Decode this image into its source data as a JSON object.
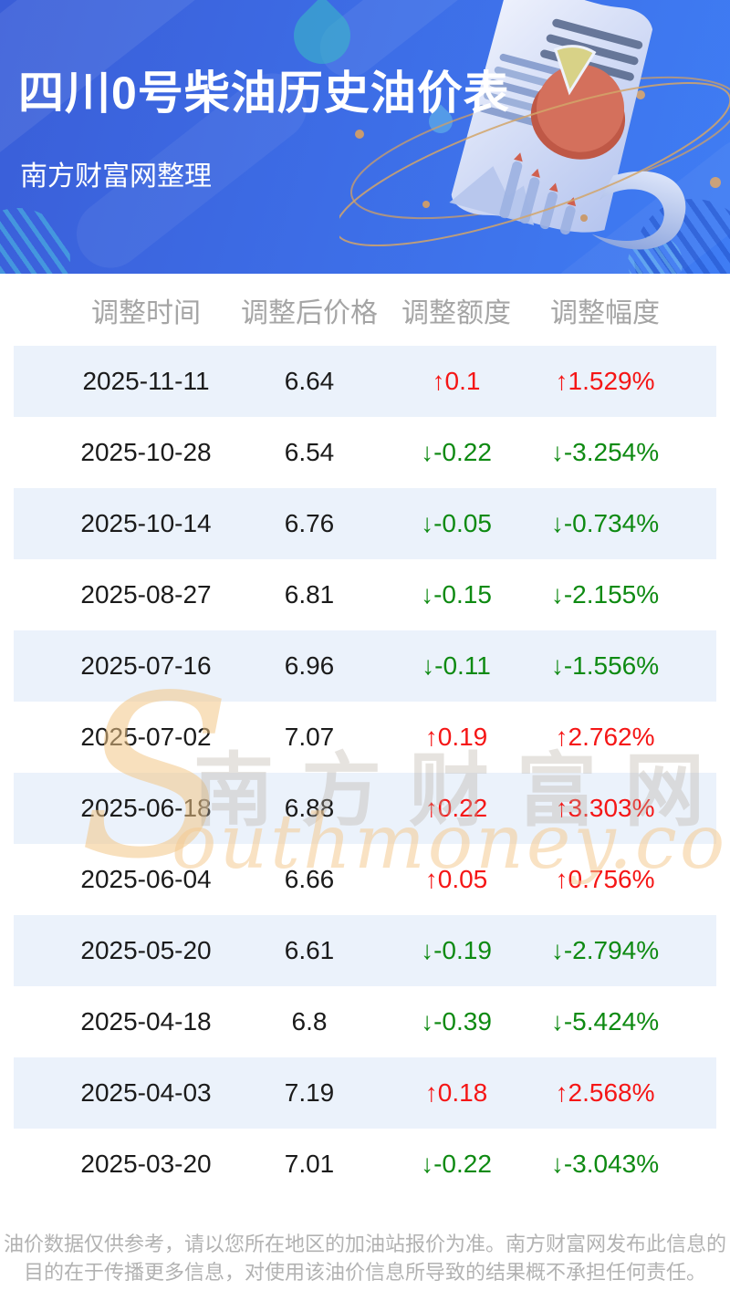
{
  "header": {
    "title": "四川0号柴油历史油价表",
    "subtitle": "南方财富网整理"
  },
  "table": {
    "columns": [
      "调整时间",
      "调整后价格",
      "调整额度",
      "调整幅度"
    ],
    "rows": [
      {
        "date": "2025-11-11",
        "price": "6.64",
        "change": "↑0.1",
        "rate": "↑1.529%",
        "direction": "up"
      },
      {
        "date": "2025-10-28",
        "price": "6.54",
        "change": "↓-0.22",
        "rate": "↓-3.254%",
        "direction": "down"
      },
      {
        "date": "2025-10-14",
        "price": "6.76",
        "change": "↓-0.05",
        "rate": "↓-0.734%",
        "direction": "down"
      },
      {
        "date": "2025-08-27",
        "price": "6.81",
        "change": "↓-0.15",
        "rate": "↓-2.155%",
        "direction": "down"
      },
      {
        "date": "2025-07-16",
        "price": "6.96",
        "change": "↓-0.11",
        "rate": "↓-1.556%",
        "direction": "down"
      },
      {
        "date": "2025-07-02",
        "price": "7.07",
        "change": "↑0.19",
        "rate": "↑2.762%",
        "direction": "up"
      },
      {
        "date": "2025-06-18",
        "price": "6.88",
        "change": "↑0.22",
        "rate": "↑3.303%",
        "direction": "up"
      },
      {
        "date": "2025-06-04",
        "price": "6.66",
        "change": "↑0.05",
        "rate": "↑0.756%",
        "direction": "up"
      },
      {
        "date": "2025-05-20",
        "price": "6.61",
        "change": "↓-0.19",
        "rate": "↓-2.794%",
        "direction": "down"
      },
      {
        "date": "2025-04-18",
        "price": "6.8",
        "change": "↓-0.39",
        "rate": "↓-5.424%",
        "direction": "down"
      },
      {
        "date": "2025-04-03",
        "price": "7.19",
        "change": "↑0.18",
        "rate": "↑2.568%",
        "direction": "up"
      },
      {
        "date": "2025-03-20",
        "price": "7.01",
        "change": "↓-0.22",
        "rate": "↓-3.043%",
        "direction": "down"
      }
    ]
  },
  "watermark": {
    "cn": "南方财富网",
    "en_initial": "S",
    "en_rest": "outhmoney.com"
  },
  "footer": {
    "line1": "油价数据仅供参考，请以您所在地区的加油站报价为准。南方财富网发布此信息的",
    "line2": "目的在于传播更多信息，对使用该油价信息所导致的结果概不承担任何责任。"
  },
  "colors": {
    "up": "#f51616",
    "down": "#0e8a12",
    "hero_from": "#3a5ed8",
    "hero_to": "#3f7df4",
    "row_alt": "#ebf2fb"
  },
  "chart_data": {
    "type": "table",
    "title": "四川0号柴油历史油价表",
    "columns": [
      "调整时间",
      "调整后价格",
      "调整额度",
      "调整幅度"
    ],
    "rows": [
      [
        "2025-11-11",
        6.64,
        "↑0.1",
        "↑1.529%"
      ],
      [
        "2025-10-28",
        6.54,
        "↓-0.22",
        "↓-3.254%"
      ],
      [
        "2025-10-14",
        6.76,
        "↓-0.05",
        "↓-0.734%"
      ],
      [
        "2025-08-27",
        6.81,
        "↓-0.15",
        "↓-2.155%"
      ],
      [
        "2025-07-16",
        6.96,
        "↓-0.11",
        "↓-1.556%"
      ],
      [
        "2025-07-02",
        7.07,
        "↑0.19",
        "↑2.762%"
      ],
      [
        "2025-06-18",
        6.88,
        "↑0.22",
        "↑3.303%"
      ],
      [
        "2025-06-04",
        6.66,
        "↑0.05",
        "↑0.756%"
      ],
      [
        "2025-05-20",
        6.61,
        "↓-0.19",
        "↓-2.794%"
      ],
      [
        "2025-04-18",
        6.8,
        "↓-0.39",
        "↓-5.424%"
      ],
      [
        "2025-04-03",
        7.19,
        "↑0.18",
        "↑2.568%"
      ],
      [
        "2025-03-20",
        7.01,
        "↓-0.22",
        "↓-3.043%"
      ]
    ]
  }
}
